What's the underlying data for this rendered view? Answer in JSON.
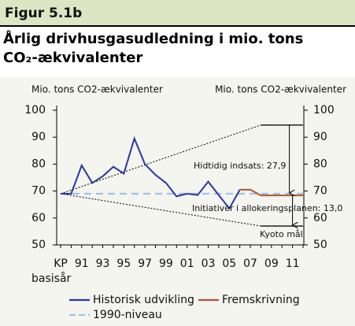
{
  "figure_label": "Figur 5.1b",
  "chart_data": {
    "type": "line",
    "title": "Årlig drivhusgasudledning i mio. tons CO₂-ækvivalenter",
    "y_label": "Mio. tons CO2-ækvivalenter",
    "y2_label": "Mio. tons CO2-ækvivalenter",
    "categories": [
      "KP",
      null,
      "91",
      null,
      "93",
      null,
      "95",
      null,
      "97",
      null,
      "99",
      null,
      "01",
      null,
      "03",
      null,
      "05",
      null,
      "07",
      null,
      "09",
      null,
      "11",
      null
    ],
    "x_note": "basisår",
    "ylim": [
      50,
      100
    ],
    "yticks": [
      50,
      60,
      70,
      80,
      90,
      100
    ],
    "y2lim": [
      50,
      100
    ],
    "y2ticks": [
      50,
      60,
      70,
      80,
      90,
      100
    ],
    "series": [
      {
        "name": "Historisk udvikling",
        "color": "#2b36a8",
        "style": "solid",
        "values": [
          69,
          69,
          79.5,
          73,
          75.5,
          79,
          76.5,
          89.5,
          80,
          76,
          73,
          68,
          69,
          68.5,
          73.5,
          68.5,
          63.5,
          70.5,
          null,
          null,
          null,
          null,
          null,
          null
        ]
      },
      {
        "name": "Fremskrivning",
        "color": "#b0562e",
        "style": "solid",
        "values": [
          null,
          null,
          null,
          null,
          null,
          null,
          null,
          null,
          null,
          null,
          null,
          null,
          null,
          null,
          null,
          null,
          null,
          70.5,
          70.5,
          68.4,
          68.4,
          68.4,
          68.4,
          68.4
        ]
      },
      {
        "name": "1990-niveau",
        "color": "#9cc4ea",
        "style": "dashed",
        "values": [
          69,
          69,
          69,
          69,
          69,
          69,
          69,
          69,
          69,
          69,
          69,
          69,
          69,
          69,
          69,
          69,
          69,
          69,
          69,
          69,
          69,
          69,
          69,
          69
        ]
      }
    ],
    "guides": [
      {
        "values": [
          69,
          null,
          null,
          null,
          null,
          null,
          null,
          null,
          null,
          null,
          null,
          null,
          null,
          null,
          null,
          null,
          null,
          null,
          null,
          94.5,
          94.5,
          94.5,
          94.5,
          94.5
        ]
      },
      {
        "values": [
          69,
          null,
          null,
          null,
          null,
          null,
          null,
          null,
          null,
          null,
          null,
          null,
          null,
          null,
          null,
          null,
          null,
          null,
          null,
          57,
          57,
          57,
          57,
          57
        ]
      }
    ],
    "arrows": [
      {
        "at": "11",
        "from": 94.5,
        "to": 69
      },
      {
        "at": "11",
        "from": 68.4,
        "to": 57
      }
    ],
    "annotations": [
      "Hidtidig indsats: 27,9",
      "Initiativer i allokeringsplanen: 13,0",
      "Kyoto mål"
    ]
  }
}
